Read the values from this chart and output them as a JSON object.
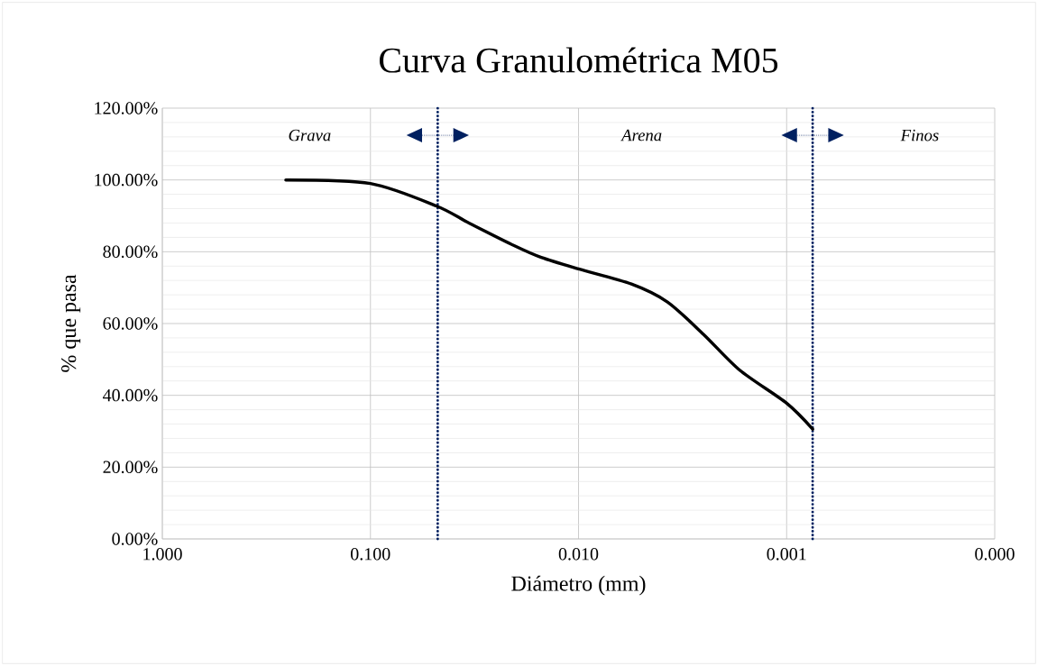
{
  "chart_data": {
    "type": "line",
    "title": "Curva Granulométrica M05",
    "xlabel": "Diámetro (mm)",
    "ylabel": "% que pasa",
    "x": [
      0.255,
      0.1,
      0.048,
      0.0336,
      0.0204,
      0.0151,
      0.01,
      0.00557,
      0.00374,
      0.00251,
      0.00168,
      0.001,
      0.00075
    ],
    "series": [
      {
        "color": "#000000",
        "values": [
          100,
          99,
          92.7,
          88,
          81.7,
          78.4,
          75.2,
          71,
          66,
          57,
          47,
          37.8,
          30.6
        ]
      }
    ],
    "log": "x",
    "xlim": [
      1,
      0.0001
    ],
    "xticks": [
      {
        "value": 1,
        "label": "1.000"
      },
      {
        "value": 0.1,
        "label": "0.100"
      },
      {
        "value": 0.01,
        "label": "0.010"
      },
      {
        "value": 0.001,
        "label": "0.001"
      },
      {
        "value": 0.0001,
        "label": "0.000"
      }
    ],
    "ylim": [
      0,
      120
    ],
    "yticks": [
      {
        "value": 0,
        "label": "0.00%"
      },
      {
        "value": 20,
        "label": "20.00%"
      },
      {
        "value": 40,
        "label": "40.00%"
      },
      {
        "value": 60,
        "label": "60.00%"
      },
      {
        "value": 80,
        "label": "80.00%"
      },
      {
        "value": 100,
        "label": "100.00%"
      },
      {
        "value": 120,
        "label": "120.00%"
      }
    ],
    "grid": true,
    "ref_lines": [
      {
        "axis": "x",
        "value": 0.0475,
        "color": "#002060",
        "line_style": "dotted"
      },
      {
        "axis": "x",
        "value": 0.00075,
        "color": "#002060",
        "line_style": "dotted"
      }
    ],
    "annotations": [
      "Grava",
      "Arena",
      "Finos"
    ]
  }
}
